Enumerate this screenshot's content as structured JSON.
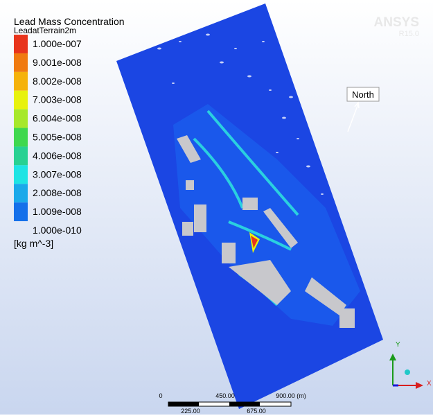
{
  "header": {
    "title": "Lead Mass Concentration",
    "variable": "LeadatTerrain2m"
  },
  "legend": {
    "labels": [
      "1.000e-007",
      "9.001e-008",
      "8.002e-008",
      "7.003e-008",
      "6.004e-008",
      "5.005e-008",
      "4.006e-008",
      "3.007e-008",
      "2.008e-008",
      "1.009e-008",
      "1.000e-010"
    ],
    "unit": "[kg m^-3]"
  },
  "logo": {
    "name": "ANSYS",
    "version": "R15.0"
  },
  "north": "North",
  "scale_bar": {
    "top": [
      "0",
      "450.00",
      "900.00 (m)"
    ],
    "bottom": [
      "225.00",
      "675.00"
    ]
  },
  "axes": {
    "y": "Y",
    "x": "X"
  }
}
